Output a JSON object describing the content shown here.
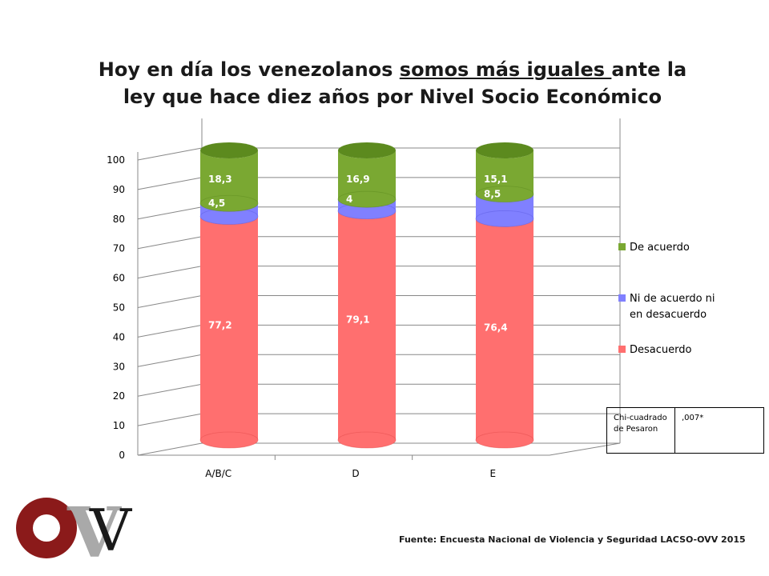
{
  "title": {
    "before": "Hoy en día los venezolanos ",
    "underlined": "somos más iguales ",
    "after": "ante la ley que hace diez años por Nivel Socio Económico"
  },
  "chart_data": {
    "type": "bar",
    "stacked": true,
    "style": "3d-cylinder",
    "categories": [
      "A/B/C",
      "D",
      "E"
    ],
    "series": [
      {
        "name": "Desacuerdo",
        "values": [
          77.2,
          79.1,
          76.4
        ],
        "labels": [
          "77,2",
          "79,1",
          "76,4"
        ],
        "color": "#ff6f6f",
        "dark": "#e24a4a"
      },
      {
        "name": "Ni de acuerdo ni en desacuerdo",
        "values": [
          4.5,
          4,
          8.5
        ],
        "labels": [
          "4,5",
          "4",
          "8,5"
        ],
        "color": "#8080ff",
        "dark": "#5a5ae0"
      },
      {
        "name": "De acuerdo",
        "values": [
          18.3,
          16.9,
          15.1
        ],
        "labels": [
          "18,3",
          "16,9",
          "15,1"
        ],
        "color": "#7aa832",
        "dark": "#5c8a1e"
      }
    ],
    "yticks": [
      "0",
      "10",
      "20",
      "30",
      "40",
      "50",
      "60",
      "70",
      "80",
      "90",
      "100"
    ],
    "ylim": [
      0,
      100
    ],
    "grid": true,
    "legend_position": "right"
  },
  "legend": {
    "items": [
      {
        "label": "De acuerdo",
        "color": "#7aa832"
      },
      {
        "label": "Ni de acuerdo ni en desacuerdo",
        "color": "#8080ff"
      },
      {
        "label": "Desacuerdo",
        "color": "#ff6f6f"
      }
    ]
  },
  "stats": {
    "label": "Chi-cuadrado de Pesaron",
    "value": ",007*"
  },
  "source": "Fuente: Encuesta Nacional de Violencia y Seguridad LACSO-OVV 2015",
  "logo": {
    "text": "OVV",
    "colors": {
      "circle": "#8b1a1a",
      "letters": "#999999"
    }
  }
}
